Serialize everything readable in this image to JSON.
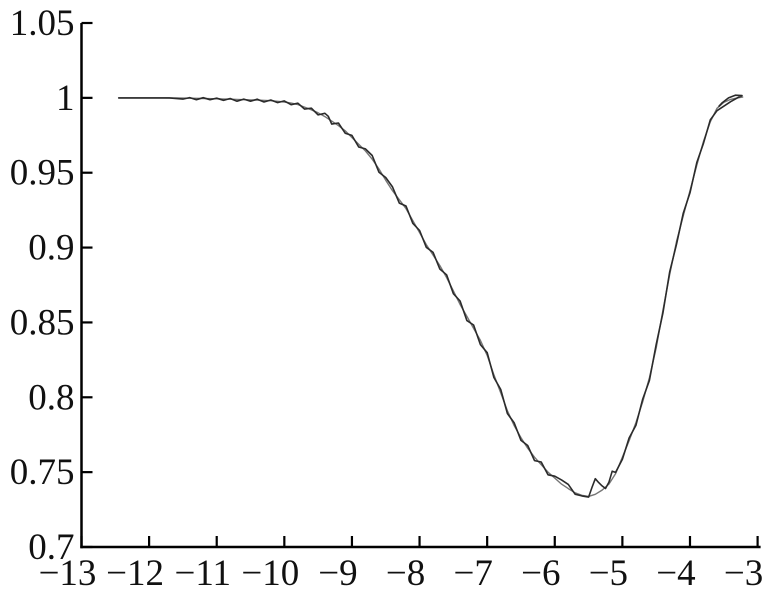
{
  "figure": {
    "background": "#ffffff",
    "axis_color": "#000000",
    "label_color": "#111111"
  },
  "chart_data": {
    "type": "line",
    "title": "",
    "subtitle": "",
    "xlabel": "",
    "ylabel": "",
    "xlim": [
      -13,
      -3
    ],
    "ylim": [
      0.7,
      1.05
    ],
    "grid": false,
    "legend_position": null,
    "frame": "left-bottom-axes-only",
    "ticks_direction": "in",
    "x_ticks": [
      -13,
      -12,
      -11,
      -10,
      -9,
      -8,
      -7,
      -6,
      -5,
      -4,
      -3
    ],
    "x_tick_labels": [
      "−13",
      "−12",
      "−11",
      "−10",
      "−9",
      "−8",
      "−7",
      "−6",
      "−5",
      "−4",
      "−3"
    ],
    "y_ticks": [
      0.7,
      0.75,
      0.8,
      0.85,
      0.9,
      0.95,
      1,
      1.05
    ],
    "y_tick_labels": [
      "0.7",
      "0.75",
      "0.8",
      "0.85",
      "0.9",
      "0.95",
      "1",
      "1.05"
    ],
    "series": [
      {
        "name": "model-smooth-profile",
        "color": "#757575",
        "stroke_width": 1.4,
        "points": [
          [
            -12.45,
            1.0
          ],
          [
            -12.2,
            1.0
          ],
          [
            -12.0,
            1.0
          ],
          [
            -11.8,
            1.0
          ],
          [
            -11.6,
            0.9999
          ],
          [
            -11.4,
            0.9998
          ],
          [
            -11.2,
            0.9996
          ],
          [
            -11.0,
            0.9994
          ],
          [
            -10.8,
            0.9991
          ],
          [
            -10.6,
            0.9988
          ],
          [
            -10.4,
            0.9985
          ],
          [
            -10.2,
            0.9981
          ],
          [
            -10.0,
            0.9972
          ],
          [
            -9.9,
            0.9965
          ],
          [
            -9.8,
            0.9955
          ],
          [
            -9.7,
            0.9938
          ],
          [
            -9.6,
            0.992
          ],
          [
            -9.5,
            0.99
          ],
          [
            -9.4,
            0.9875
          ],
          [
            -9.3,
            0.9845
          ],
          [
            -9.2,
            0.9815
          ],
          [
            -9.1,
            0.978
          ],
          [
            -9.0,
            0.9735
          ],
          [
            -8.9,
            0.969
          ],
          [
            -8.8,
            0.9645
          ],
          [
            -8.7,
            0.959
          ],
          [
            -8.6,
            0.9525
          ],
          [
            -8.5,
            0.945
          ],
          [
            -8.4,
            0.938
          ],
          [
            -8.3,
            0.932
          ],
          [
            -8.2,
            0.926
          ],
          [
            -8.1,
            0.918
          ],
          [
            -8.0,
            0.91
          ],
          [
            -7.9,
            0.902
          ],
          [
            -7.8,
            0.895
          ],
          [
            -7.7,
            0.888
          ],
          [
            -7.6,
            0.88
          ],
          [
            -7.5,
            0.871
          ],
          [
            -7.4,
            0.862
          ],
          [
            -7.3,
            0.854
          ],
          [
            -7.2,
            0.846
          ],
          [
            -7.1,
            0.838
          ],
          [
            -7.0,
            0.828
          ],
          [
            -6.9,
            0.815
          ],
          [
            -6.8,
            0.803
          ],
          [
            -6.7,
            0.791
          ],
          [
            -6.6,
            0.781
          ],
          [
            -6.5,
            0.773
          ],
          [
            -6.4,
            0.766
          ],
          [
            -6.3,
            0.76
          ],
          [
            -6.2,
            0.755
          ],
          [
            -6.1,
            0.75
          ],
          [
            -6.0,
            0.746
          ],
          [
            -5.9,
            0.742
          ],
          [
            -5.8,
            0.739
          ],
          [
            -5.7,
            0.7362
          ],
          [
            -5.6,
            0.7345
          ],
          [
            -5.5,
            0.7338
          ],
          [
            -5.4,
            0.7352
          ],
          [
            -5.3,
            0.738
          ],
          [
            -5.2,
            0.742
          ],
          [
            -5.1,
            0.749
          ],
          [
            -5.0,
            0.76
          ],
          [
            -4.9,
            0.771
          ],
          [
            -4.8,
            0.783
          ],
          [
            -4.7,
            0.797
          ],
          [
            -4.6,
            0.813
          ],
          [
            -4.5,
            0.833
          ],
          [
            -4.4,
            0.858
          ],
          [
            -4.3,
            0.882
          ],
          [
            -4.2,
            0.904
          ],
          [
            -4.1,
            0.921
          ],
          [
            -4.0,
            0.938
          ],
          [
            -3.9,
            0.955
          ],
          [
            -3.8,
            0.971
          ],
          [
            -3.7,
            0.984
          ],
          [
            -3.6,
            0.993
          ],
          [
            -3.5,
            0.997
          ],
          [
            -3.4,
            0.999
          ],
          [
            -3.3,
            1.0
          ],
          [
            -3.22,
            1.0005
          ]
        ]
      },
      {
        "name": "observed-noisy-profile",
        "color": "#2b2b2b",
        "stroke_width": 1.6,
        "points": [
          [
            -12.45,
            1.0
          ],
          [
            -12.3,
            1.0
          ],
          [
            -12.1,
            1.0
          ],
          [
            -11.9,
            1.0
          ],
          [
            -11.7,
            1.0
          ],
          [
            -11.5,
            0.9992
          ],
          [
            -11.4,
            1.0002
          ],
          [
            -11.3,
            0.9988
          ],
          [
            -11.2,
            1.0001
          ],
          [
            -11.1,
            0.9988
          ],
          [
            -11.0,
            0.9998
          ],
          [
            -10.9,
            0.9984
          ],
          [
            -10.8,
            0.9996
          ],
          [
            -10.7,
            0.9978
          ],
          [
            -10.6,
            0.9992
          ],
          [
            -10.5,
            0.9978
          ],
          [
            -10.4,
            0.9991
          ],
          [
            -10.3,
            0.9972
          ],
          [
            -10.2,
            0.9986
          ],
          [
            -10.1,
            0.9968
          ],
          [
            -10.0,
            0.998
          ],
          [
            -9.9,
            0.9954
          ],
          [
            -9.8,
            0.9964
          ],
          [
            -9.7,
            0.9925
          ],
          [
            -9.6,
            0.9931
          ],
          [
            -9.5,
            0.9886
          ],
          [
            -9.4,
            0.9897
          ],
          [
            -9.35,
            0.9877
          ],
          [
            -9.3,
            0.9825
          ],
          [
            -9.2,
            0.9832
          ],
          [
            -9.1,
            0.9764
          ],
          [
            -9.0,
            0.9749
          ],
          [
            -8.9,
            0.9672
          ],
          [
            -8.8,
            0.9659
          ],
          [
            -8.7,
            0.9615
          ],
          [
            -8.6,
            0.9503
          ],
          [
            -8.5,
            0.9468
          ],
          [
            -8.4,
            0.9405
          ],
          [
            -8.3,
            0.9297
          ],
          [
            -8.2,
            0.9278
          ],
          [
            -8.1,
            0.9162
          ],
          [
            -8.0,
            0.9114
          ],
          [
            -7.9,
            0.9002
          ],
          [
            -7.8,
            0.8968
          ],
          [
            -7.7,
            0.8857
          ],
          [
            -7.6,
            0.8818
          ],
          [
            -7.5,
            0.8692
          ],
          [
            -7.4,
            0.8643
          ],
          [
            -7.3,
            0.8512
          ],
          [
            -7.2,
            0.8483
          ],
          [
            -7.1,
            0.8352
          ],
          [
            -7.0,
            0.8298
          ],
          [
            -6.9,
            0.8132
          ],
          [
            -6.8,
            0.8053
          ],
          [
            -6.7,
            0.7892
          ],
          [
            -6.6,
            0.7829
          ],
          [
            -6.5,
            0.7712
          ],
          [
            -6.4,
            0.7678
          ],
          [
            -6.3,
            0.7577
          ],
          [
            -6.2,
            0.7568
          ],
          [
            -6.1,
            0.7482
          ],
          [
            -6.0,
            0.7473
          ],
          [
            -5.9,
            0.7448
          ],
          [
            -5.8,
            0.7418
          ],
          [
            -5.7,
            0.7353
          ],
          [
            -5.6,
            0.7341
          ],
          [
            -5.5,
            0.7333
          ],
          [
            -5.45,
            0.7398
          ],
          [
            -5.4,
            0.7456
          ],
          [
            -5.35,
            0.743
          ],
          [
            -5.3,
            0.7408
          ],
          [
            -5.25,
            0.7391
          ],
          [
            -5.2,
            0.7432
          ],
          [
            -5.15,
            0.7506
          ],
          [
            -5.1,
            0.7498
          ],
          [
            -5.0,
            0.7586
          ],
          [
            -4.9,
            0.7728
          ],
          [
            -4.8,
            0.7812
          ],
          [
            -4.7,
            0.7988
          ],
          [
            -4.6,
            0.8112
          ],
          [
            -4.5,
            0.8353
          ],
          [
            -4.4,
            0.8562
          ],
          [
            -4.3,
            0.8838
          ],
          [
            -4.2,
            0.9022
          ],
          [
            -4.1,
            0.9228
          ],
          [
            -4.0,
            0.9366
          ],
          [
            -3.9,
            0.9568
          ],
          [
            -3.8,
            0.9697
          ],
          [
            -3.7,
            0.9853
          ],
          [
            -3.6,
            0.9914
          ],
          [
            -3.5,
            0.9944
          ],
          [
            -3.4,
            0.9974
          ],
          [
            -3.3,
            1.0
          ],
          [
            -3.23,
            1.0015
          ],
          [
            -3.33,
            1.0018
          ],
          [
            -3.43,
            1.0
          ],
          [
            -3.52,
            0.9968
          ],
          [
            -3.57,
            0.9945
          ]
        ]
      }
    ]
  }
}
